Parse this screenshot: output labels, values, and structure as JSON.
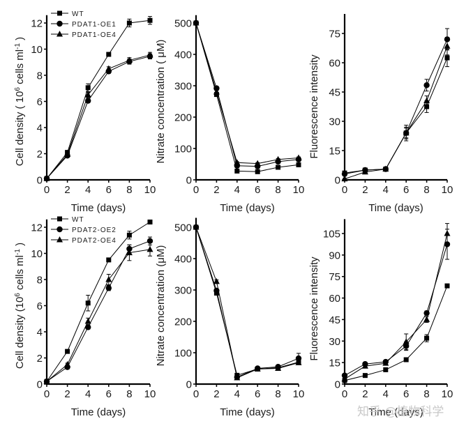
{
  "chart_data": [
    {
      "type": "line",
      "xlabel": "Time (days)",
      "ylabel": "Cell density ( 10^6 cells ml^-1 )",
      "x": [
        0,
        2,
        4,
        6,
        8,
        10
      ],
      "xlim": [
        0,
        10
      ],
      "xticks": [
        0,
        2,
        4,
        6,
        8,
        10
      ],
      "ylim": [
        0,
        12.6
      ],
      "yticks": [
        0,
        2,
        4,
        6,
        8,
        10,
        12
      ],
      "legend": "top-left",
      "series": [
        {
          "name": "WT",
          "marker": "square",
          "values": [
            0.1,
            2.1,
            7.05,
            9.6,
            12.0,
            12.2
          ],
          "errors": [
            0,
            0.1,
            0.3,
            0.1,
            0.3,
            0.3
          ]
        },
        {
          "name": "PDAT1-OE1",
          "marker": "circle",
          "values": [
            0.1,
            1.85,
            6.05,
            8.3,
            9.05,
            9.45
          ],
          "errors": [
            0,
            0.1,
            0.15,
            0.15,
            0.2,
            0.2
          ]
        },
        {
          "name": "PDAT1-OE4",
          "marker": "triangle",
          "values": [
            0.1,
            1.95,
            6.5,
            8.5,
            9.15,
            9.55
          ],
          "errors": [
            0,
            0.1,
            0.2,
            0.15,
            0.2,
            0.2
          ]
        }
      ]
    },
    {
      "type": "line",
      "xlabel": "Time (days)",
      "ylabel": "Nitrate concentration ( μM)",
      "x": [
        0,
        2,
        4,
        6,
        8,
        10
      ],
      "xlim": [
        0,
        10
      ],
      "xticks": [
        0,
        2,
        4,
        6,
        8,
        10
      ],
      "ylim": [
        0,
        525
      ],
      "yticks": [
        0,
        100,
        200,
        300,
        400,
        500
      ],
      "series": [
        {
          "name": "WT",
          "marker": "square",
          "values": [
            500,
            272,
            28,
            26,
            40,
            48
          ],
          "errors": [
            0,
            5,
            3,
            3,
            3,
            3
          ]
        },
        {
          "name": "PDAT1-OE1",
          "marker": "circle",
          "values": [
            500,
            292,
            45,
            43,
            58,
            65
          ],
          "errors": [
            0,
            5,
            3,
            3,
            3,
            3
          ]
        },
        {
          "name": "PDAT1-OE4",
          "marker": "triangle",
          "values": [
            500,
            280,
            55,
            52,
            65,
            70
          ],
          "errors": [
            0,
            5,
            3,
            3,
            3,
            3
          ]
        }
      ]
    },
    {
      "type": "line",
      "xlabel": "Time (days)",
      "ylabel": "Fluorescence intensity",
      "x": [
        0,
        2,
        4,
        6,
        8,
        10
      ],
      "xlim": [
        0,
        10
      ],
      "xticks": [
        0,
        2,
        4,
        6,
        8,
        10
      ],
      "ylim": [
        0,
        85
      ],
      "yticks": [
        0,
        15,
        30,
        45,
        60,
        75
      ],
      "series": [
        {
          "name": "WT",
          "marker": "square",
          "values": [
            3.5,
            5.0,
            5.5,
            24,
            37.5,
            62.5
          ],
          "errors": [
            0.5,
            0.5,
            1.0,
            3,
            3,
            4.5
          ]
        },
        {
          "name": "PDAT1-OE1",
          "marker": "circle",
          "values": [
            3.0,
            5.0,
            5.5,
            24,
            48.5,
            72
          ],
          "errors": [
            0.5,
            0.5,
            1.0,
            4,
            3,
            5.5
          ]
        },
        {
          "name": "PDAT1-OE4",
          "marker": "triangle",
          "values": [
            0.5,
            4.0,
            5.5,
            24,
            40.5,
            68.5
          ],
          "errors": [
            0.3,
            0.5,
            1.0,
            2.5,
            2.5,
            4.5
          ]
        }
      ]
    },
    {
      "type": "line",
      "xlabel": "Time (days)",
      "ylabel": "Cell density (10^6 cells ml^-1 )",
      "x": [
        0,
        2,
        4,
        6,
        8,
        10
      ],
      "xlim": [
        0,
        10
      ],
      "xticks": [
        0,
        2,
        4,
        6,
        8,
        10
      ],
      "ylim": [
        0,
        12.6
      ],
      "yticks": [
        0,
        2,
        4,
        6,
        8,
        10,
        12
      ],
      "legend": "top-left",
      "series": [
        {
          "name": "WT",
          "marker": "square",
          "values": [
            0.2,
            2.5,
            6.2,
            9.5,
            11.4,
            12.4
          ],
          "errors": [
            0,
            0.1,
            0.6,
            0.1,
            0.3,
            0.1
          ]
        },
        {
          "name": "PDAT2-OE2",
          "marker": "circle",
          "values": [
            0.2,
            1.3,
            4.35,
            7.35,
            10.35,
            10.95
          ],
          "errors": [
            0,
            0.1,
            0.15,
            0.2,
            0.3,
            0.3
          ]
        },
        {
          "name": "PDAT2-OE4",
          "marker": "triangle",
          "values": [
            0.2,
            1.5,
            4.8,
            8.0,
            10.05,
            10.3
          ],
          "errors": [
            0,
            0.1,
            0.25,
            0.4,
            0.6,
            0.5
          ]
        }
      ]
    },
    {
      "type": "line",
      "xlabel": "Time (days)",
      "ylabel": "Nitrate concentration (μM)",
      "x": [
        0,
        2,
        4,
        6,
        8,
        10
      ],
      "xlim": [
        0,
        10
      ],
      "xticks": [
        0,
        2,
        4,
        6,
        8,
        10
      ],
      "ylim": [
        0,
        530
      ],
      "yticks": [
        0,
        100,
        200,
        300,
        400,
        500
      ],
      "series": [
        {
          "name": "WT",
          "marker": "square",
          "values": [
            500,
            290,
            28,
            48,
            52,
            70
          ],
          "errors": [
            0,
            5,
            3,
            3,
            3,
            3
          ]
        },
        {
          "name": "PDAT2-OE2",
          "marker": "circle",
          "values": [
            500,
            298,
            22,
            50,
            55,
            82
          ],
          "errors": [
            0,
            5,
            3,
            3,
            3,
            16
          ]
        },
        {
          "name": "PDAT2-OE4",
          "marker": "triangle",
          "values": [
            500,
            327,
            20,
            48,
            50,
            68
          ],
          "errors": [
            0,
            5,
            3,
            3,
            3,
            3
          ]
        }
      ]
    },
    {
      "type": "line",
      "xlabel": "Time (days)",
      "ylabel": "Fluorescence intensity",
      "x": [
        0,
        2,
        4,
        6,
        8,
        10
      ],
      "xlim": [
        0,
        10
      ],
      "xticks": [
        0,
        2,
        4,
        6,
        8,
        10
      ],
      "ylim": [
        0,
        115
      ],
      "yticks": [
        0,
        15,
        30,
        45,
        60,
        75,
        90,
        105
      ],
      "series": [
        {
          "name": "WT",
          "marker": "square",
          "values": [
            2.5,
            6.0,
            10.0,
            17.0,
            32.0,
            68.5
          ],
          "errors": [
            0.5,
            0.5,
            0.5,
            1,
            2.5,
            1
          ]
        },
        {
          "name": "PDAT2-OE2",
          "marker": "circle",
          "values": [
            6.0,
            14.0,
            15.5,
            26.5,
            49.5,
            97.5
          ],
          "errors": [
            0.5,
            1,
            1,
            3,
            1.5,
            10.5
          ]
        },
        {
          "name": "PDAT2-OE4",
          "marker": "triangle",
          "values": [
            3.5,
            12.5,
            14.5,
            29.5,
            45.0,
            105
          ],
          "errors": [
            0.5,
            1,
            1,
            5.5,
            2,
            7
          ]
        }
      ]
    }
  ],
  "watermark": "知乎 @植物科学"
}
